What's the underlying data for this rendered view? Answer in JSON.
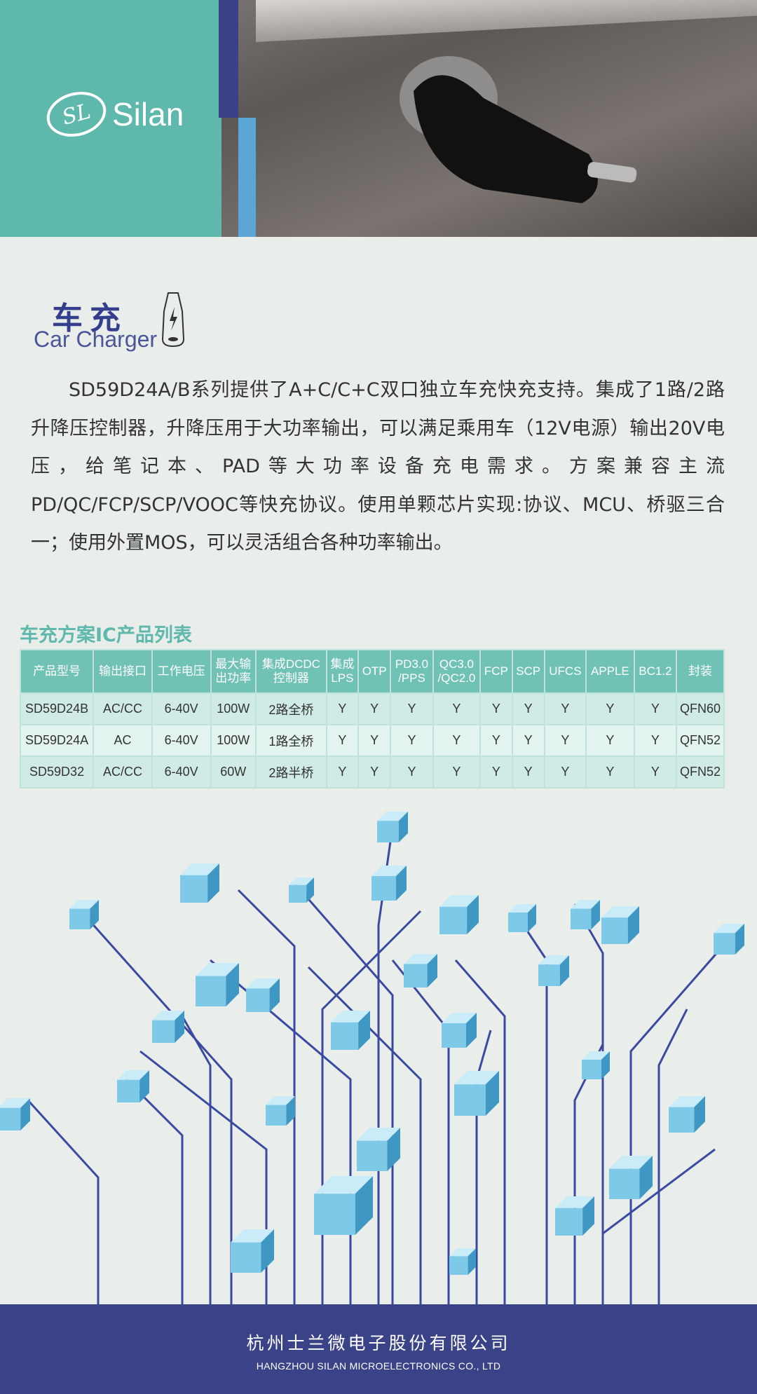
{
  "brand": {
    "logo_mark": "SL",
    "name": "Silan"
  },
  "section": {
    "title_cn": "车充",
    "title_en": "Car Charger",
    "icon": "car-charger-bolt-icon"
  },
  "description": "SD59D24A/B系列提供了A+C/C+C双口独立车充快充支持。集成了1路/2路升降压控制器，升降压用于大功率输出，可以满足乘用车（12V电源）输出20V电压，给笔记本、PAD等大功率设备充电需求。方案兼容主流PD/QC/FCP/SCP/VOOC等快充协议。使用单颗芯片实现:协议、MCU、桥驱三合一；使用外置MOS，可以灵活组合各种功率输出。",
  "table": {
    "title": "车充方案IC产品列表",
    "headers": [
      [
        "产品型号"
      ],
      [
        "输出接口"
      ],
      [
        "工作电压"
      ],
      [
        "最大输",
        "出功率"
      ],
      [
        "集成DCDC",
        "控制器"
      ],
      [
        "集成",
        "LPS"
      ],
      [
        "OTP"
      ],
      [
        "PD3.0",
        "/PPS"
      ],
      [
        "QC3.0",
        "/QC2.0"
      ],
      [
        "FCP"
      ],
      [
        "SCP"
      ],
      [
        "UFCS"
      ],
      [
        "APPLE"
      ],
      [
        "BC1.2"
      ],
      [
        "封装"
      ]
    ],
    "rows": [
      [
        "SD59D24B",
        "AC/CC",
        "6-40V",
        "100W",
        "2路全桥",
        "Y",
        "Y",
        "Y",
        "Y",
        "Y",
        "Y",
        "Y",
        "Y",
        "Y",
        "QFN60"
      ],
      [
        "SD59D24A",
        "AC",
        "6-40V",
        "100W",
        "1路全桥",
        "Y",
        "Y",
        "Y",
        "Y",
        "Y",
        "Y",
        "Y",
        "Y",
        "Y",
        "QFN52"
      ],
      [
        "SD59D32",
        "AC/CC",
        "6-40V",
        "60W",
        "2路半桥",
        "Y",
        "Y",
        "Y",
        "Y",
        "Y",
        "Y",
        "Y",
        "Y",
        "Y",
        "QFN52"
      ]
    ]
  },
  "footer": {
    "company_cn": "杭州士兰微电子股份有限公司",
    "company_en": "HANGZHOU SILAN MICROELECTRONICS CO., LTD"
  },
  "colors": {
    "teal": "#5fb8ac",
    "navy": "#3a4288",
    "light_blue": "#5ba6d6"
  }
}
